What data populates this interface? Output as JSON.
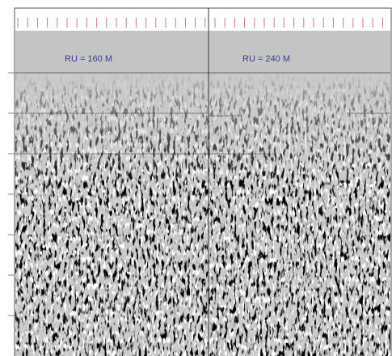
{
  "panels": [
    {
      "label": "RU = 160 M"
    },
    {
      "label": "RU = 240 M"
    }
  ]
}
